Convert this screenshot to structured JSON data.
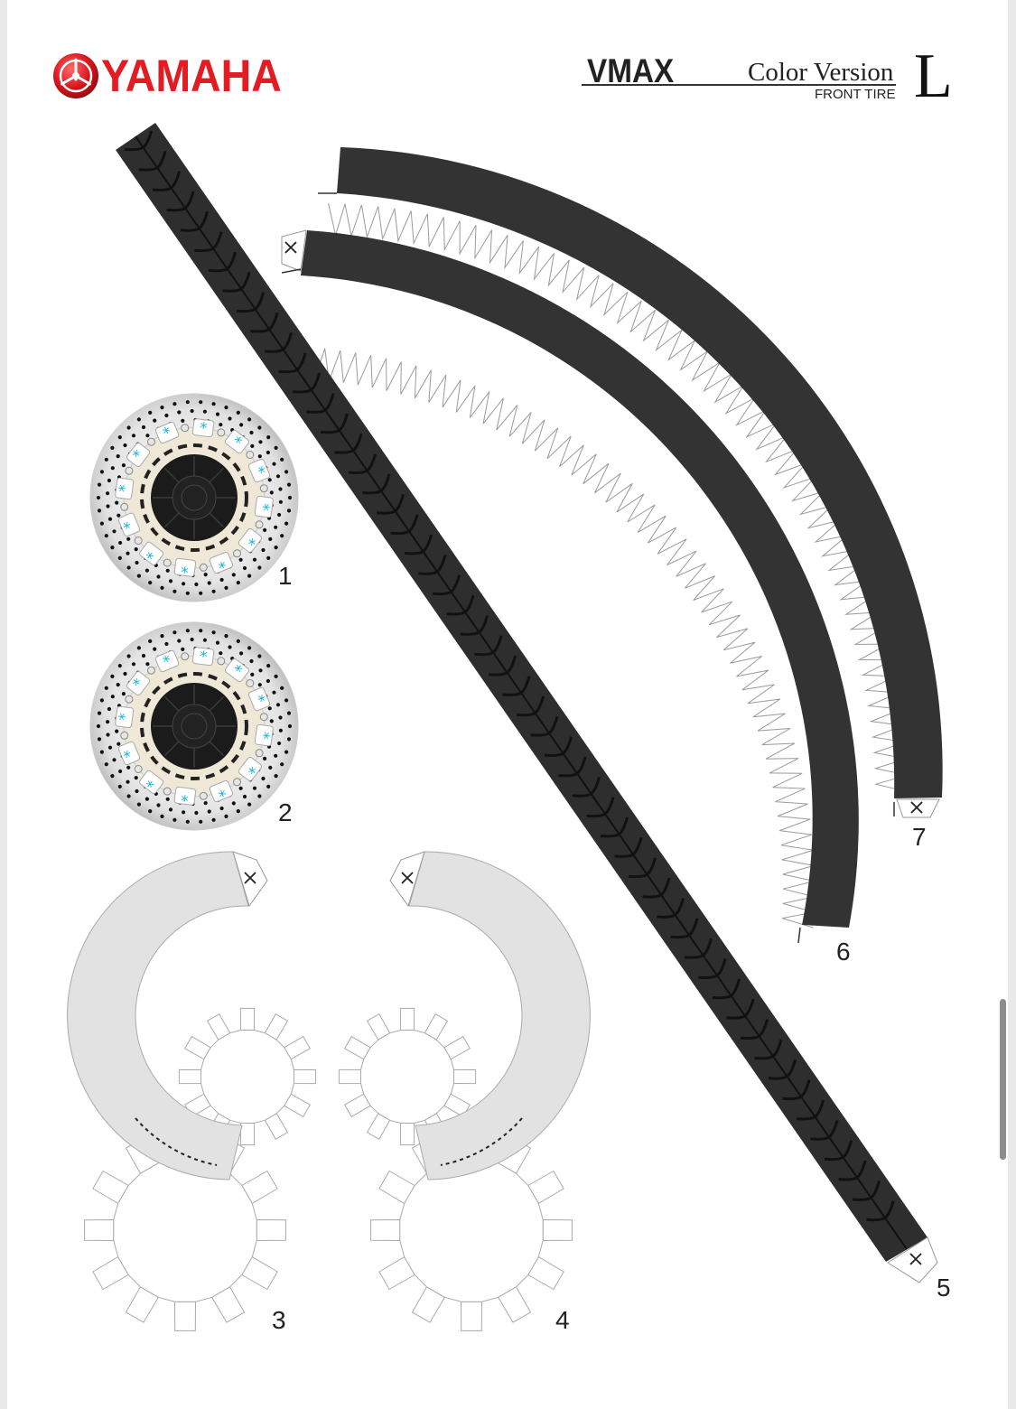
{
  "header": {
    "brand": "YAMAHA",
    "model": "VMAX",
    "version": "Color Version",
    "part": "FRONT TIRE",
    "size": "L"
  },
  "icons": {
    "brand_emblem": "tuning-fork-emblem-icon",
    "glue_mark": "cross-mark-icon"
  },
  "colors": {
    "brand_red": "#e31b23",
    "tire": "#333333",
    "disc_silver": "#d9d9d9",
    "hub_cream": "#efe8d6",
    "pad_cyan": "#19b6e0",
    "sidewall_gray": "#e2e2e2"
  },
  "parts": [
    {
      "id": "part-1",
      "label": "1"
    },
    {
      "id": "part-2",
      "label": "2"
    },
    {
      "id": "part-3",
      "label": "3"
    },
    {
      "id": "part-4",
      "label": "4"
    },
    {
      "id": "part-5",
      "label": "5"
    },
    {
      "id": "part-6",
      "label": "6"
    },
    {
      "id": "part-7",
      "label": "7"
    }
  ]
}
